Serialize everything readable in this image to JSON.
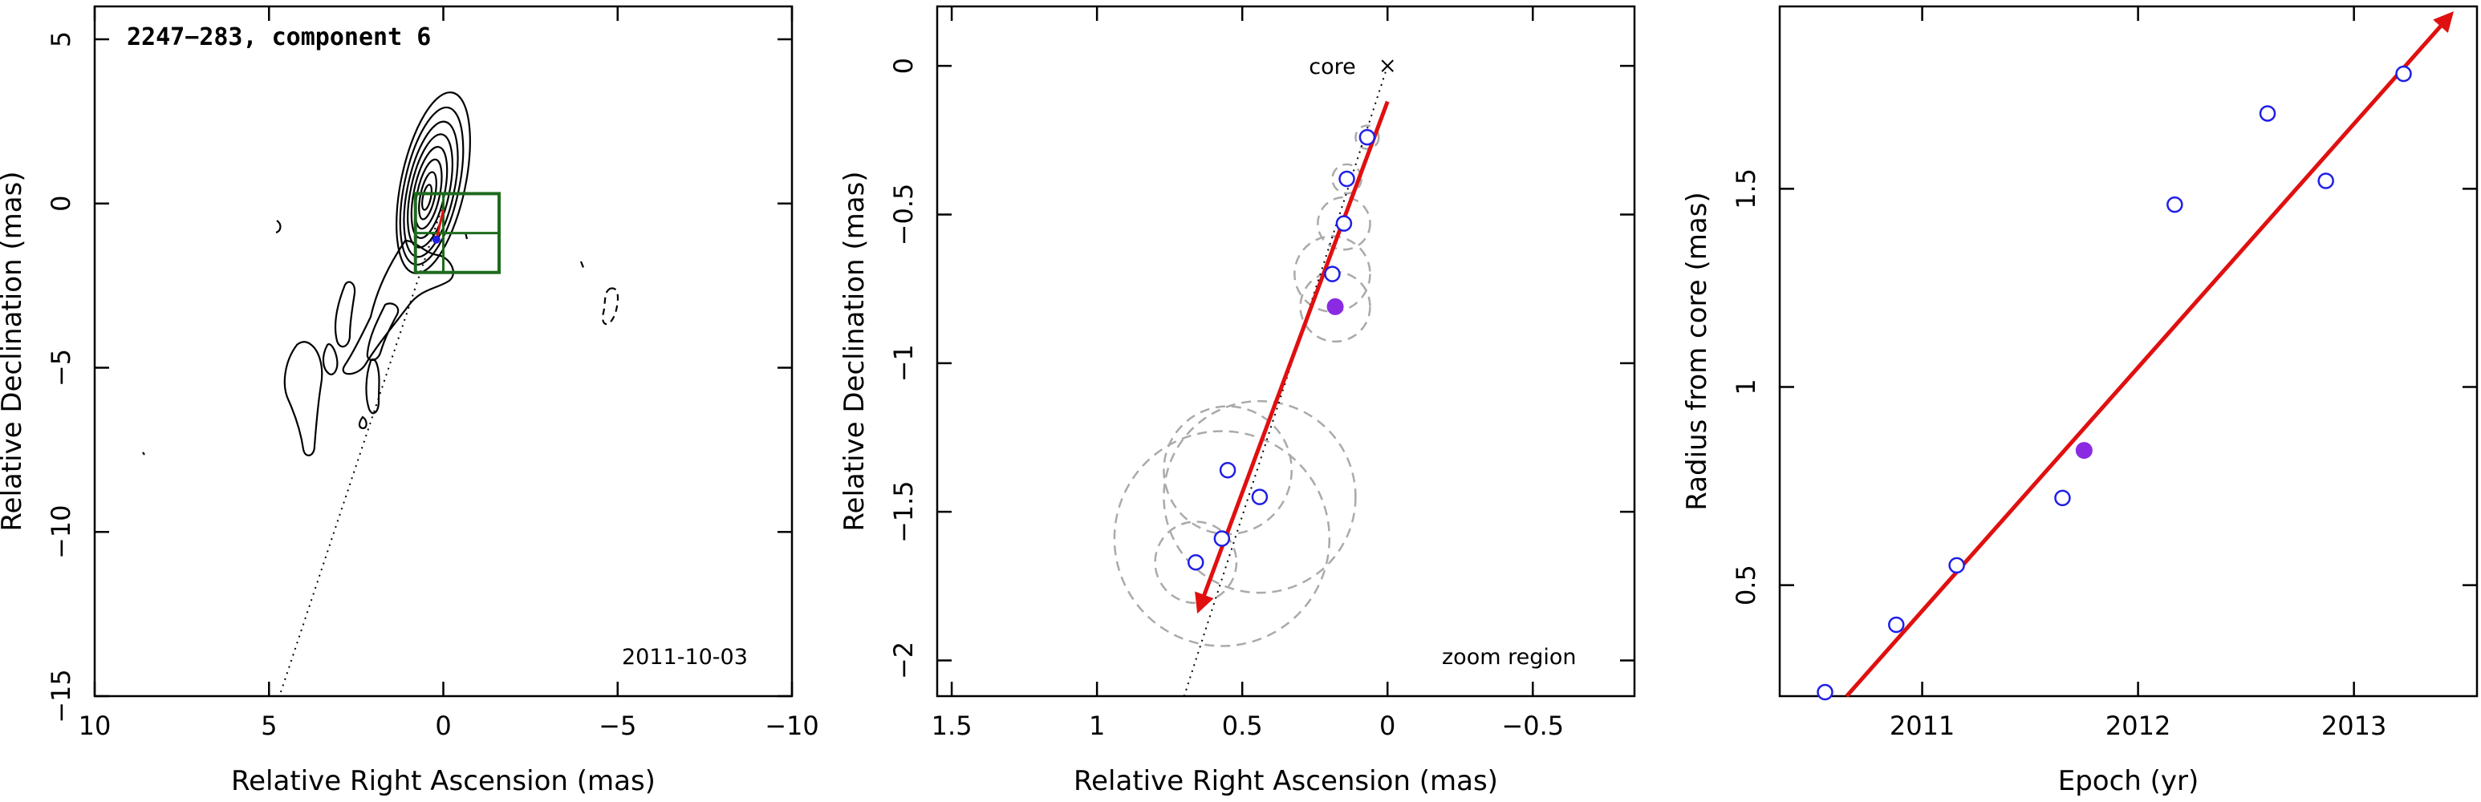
{
  "chart_data": [
    {
      "type": "contour",
      "panel": "contour-map",
      "title": "2247−283, component 6",
      "xlabel": "Relative Right Ascension (mas)",
      "ylabel": "Relative Declination (mas)",
      "xlim": [
        10,
        -10
      ],
      "ylim": [
        -15,
        6
      ],
      "xticks": [
        10,
        5,
        0,
        -5,
        -10
      ],
      "xtick_labels": [
        "10",
        "5",
        "0",
        "−5",
        "−10"
      ],
      "yticks": [
        5,
        0,
        -5,
        -10,
        -15
      ],
      "ytick_labels": [
        "5",
        "0",
        "−5",
        "−10",
        "−15"
      ],
      "annotation": "2011-10-03",
      "core": [
        0,
        0
      ],
      "zoom_box": {
        "x": [
          0.8,
          -1.6
        ],
        "y": [
          -2.1,
          0.3
        ]
      },
      "jet_direction_line": [
        [
          0,
          0
        ],
        [
          4.7,
          -15
        ]
      ],
      "component_position": [
        0.2,
        -1.1
      ]
    },
    {
      "type": "scatter",
      "panel": "zoom-region",
      "xlabel": "Relative Right Ascension (mas)",
      "ylabel": "Relative Declination (mas)",
      "xlim": [
        1.55,
        -0.85
      ],
      "ylim": [
        -2.12,
        0.2
      ],
      "xticks": [
        1.5,
        1,
        0.5,
        0,
        -0.5
      ],
      "xtick_labels": [
        "1.5",
        "1",
        "0.5",
        "0",
        "−0.5"
      ],
      "yticks": [
        0,
        -0.5,
        -1,
        -1.5,
        -2
      ],
      "ytick_labels": [
        "0",
        "−0.5",
        "−1",
        "−1.5",
        "−2"
      ],
      "core_label": "core",
      "annotation": "zoom region",
      "points": [
        {
          "x": 0.66,
          "y": -1.67,
          "r": 0.14
        },
        {
          "x": 0.57,
          "y": -1.59,
          "r": 0.37
        },
        {
          "x": 0.55,
          "y": -1.36,
          "r": 0.22
        },
        {
          "x": 0.44,
          "y": -1.45,
          "r": 0.33
        },
        {
          "x": 0.19,
          "y": -0.7,
          "r": 0.13
        },
        {
          "x": 0.15,
          "y": -0.53,
          "r": 0.09
        },
        {
          "x": 0.14,
          "y": -0.38,
          "r": 0.05
        },
        {
          "x": 0.07,
          "y": -0.24,
          "r": 0.04
        }
      ],
      "highlight_point": {
        "x": 0.18,
        "y": -0.81,
        "r": 0.12
      },
      "fit_arrow": {
        "from": [
          0,
          -0.12
        ],
        "to": [
          0.65,
          -1.83
        ]
      },
      "jet_direction_line": {
        "from": [
          0,
          0
        ],
        "to": [
          0.7,
          -2.12
        ]
      }
    },
    {
      "type": "scatter",
      "panel": "radius-vs-epoch",
      "xlabel": "Epoch (yr)",
      "ylabel": "Radius from core (mas)",
      "xlim": [
        2010.34,
        2013.57
      ],
      "ylim": [
        0.22,
        1.96
      ],
      "xticks": [
        2011,
        2012,
        2013
      ],
      "xtick_labels": [
        "2011",
        "2012",
        "2013"
      ],
      "yticks": [
        0.5,
        1,
        1.5
      ],
      "ytick_labels": [
        "0.5",
        "1",
        "1.5"
      ],
      "x": [
        2010.55,
        2010.88,
        2011.16,
        2011.65,
        2012.17,
        2012.6,
        2012.87,
        2013.23
      ],
      "y": [
        0.23,
        0.4,
        0.55,
        0.72,
        1.46,
        1.69,
        1.52,
        1.79
      ],
      "highlight_point": {
        "x": 2011.75,
        "y": 0.84
      },
      "fit_line": {
        "from": [
          2010.65,
          0.22
        ],
        "to": [
          2013.45,
          1.94
        ]
      }
    }
  ],
  "colors": {
    "axis": "#000000",
    "open_marker": "#1f1fe6",
    "highlight_marker": "#8a2be2",
    "fit_arrow": "#e01010",
    "zoom_box": "#1e6b1e",
    "uncertainty_circle": "#aaaaaa",
    "contour": "#000000"
  }
}
